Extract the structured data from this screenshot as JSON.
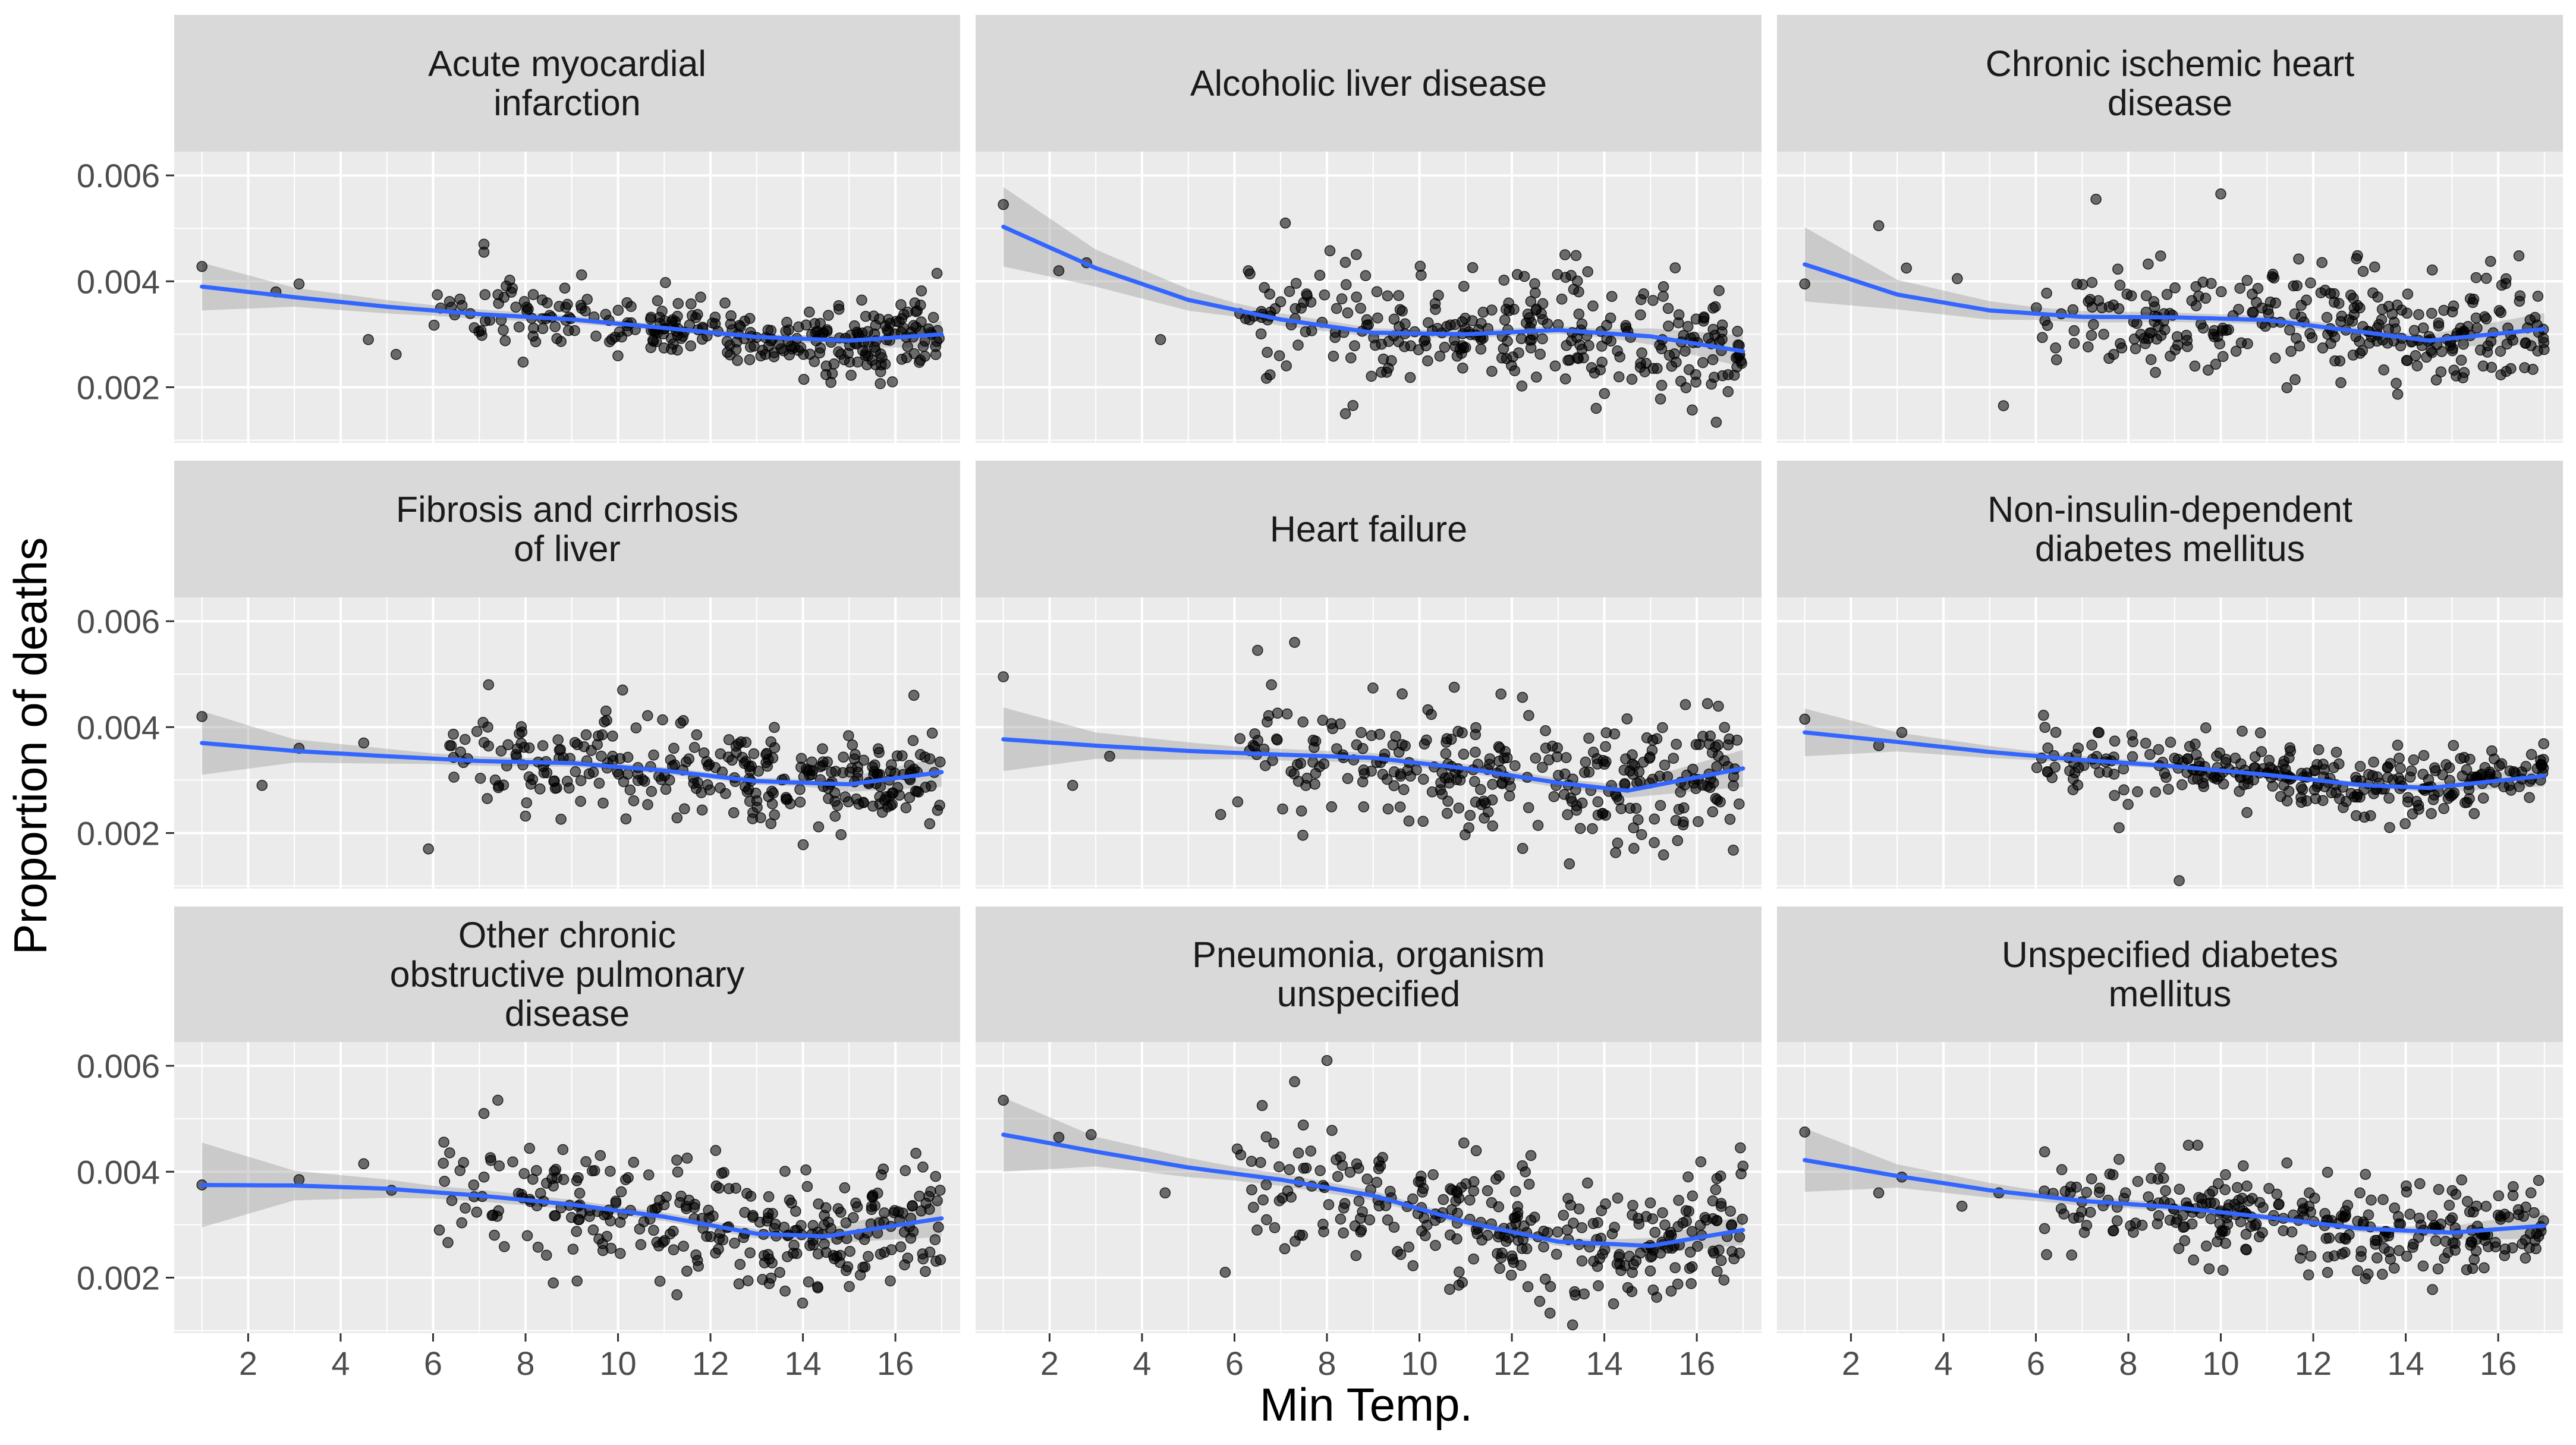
{
  "chart_data": {
    "type": "scatter",
    "layout": "3x3 faceted scatter with smoothed trend line and confidence band",
    "xlabel": "Min Temp.",
    "ylabel": "Proportion of deaths",
    "xlim": [
      0.4,
      17.4
    ],
    "ylim": [
      0.00095,
      0.00645
    ],
    "x_ticks": [
      "2",
      "4",
      "6",
      "8",
      "10",
      "12",
      "14",
      "16"
    ],
    "y_ticks": [
      "0.002",
      "0.004",
      "0.006"
    ],
    "grid": true,
    "colors": {
      "panel_bg": "#ebebeb",
      "strip_bg": "#d9d9d9",
      "grid_major": "#ffffff",
      "points": "#000000",
      "smooth_line": "#3366ff",
      "confidence_band": "#999999"
    },
    "facets": [
      {
        "title_lines": [
          "Acute myocardial",
          "infarction"
        ],
        "smooth": [
          [
            1,
            0.0039
          ],
          [
            3,
            0.0037
          ],
          [
            5,
            0.00352
          ],
          [
            7,
            0.00338
          ],
          [
            9,
            0.00328
          ],
          [
            11,
            0.00312
          ],
          [
            13,
            0.00295
          ],
          [
            15,
            0.00288
          ],
          [
            17,
            0.003
          ]
        ],
        "se": [
          [
            1,
            0.00045
          ],
          [
            3,
            0.00018
          ],
          [
            6,
            0.0001
          ],
          [
            10,
            6e-05
          ],
          [
            14,
            7e-05
          ],
          [
            17,
            0.00025
          ]
        ],
        "cloud": {
          "center_mean": 0.0031,
          "spread": 0.00033
        },
        "outliers": [
          [
            1,
            0.00428
          ],
          [
            2.6,
            0.0038
          ],
          [
            3.1,
            0.00395
          ],
          [
            4.6,
            0.0029
          ],
          [
            5.2,
            0.00262
          ],
          [
            7.1,
            0.0047
          ],
          [
            7.1,
            0.00455
          ],
          [
            16.9,
            0.00415
          ]
        ]
      },
      {
        "title_lines": [
          "Alcoholic liver disease"
        ],
        "smooth": [
          [
            1,
            0.00503
          ],
          [
            3,
            0.00425
          ],
          [
            5,
            0.00365
          ],
          [
            7,
            0.00328
          ],
          [
            9,
            0.00303
          ],
          [
            11,
            0.003
          ],
          [
            13,
            0.00308
          ],
          [
            15,
            0.00296
          ],
          [
            17,
            0.00268
          ]
        ],
        "se": [
          [
            1,
            0.00075
          ],
          [
            3,
            0.00035
          ],
          [
            6,
            0.00013
          ],
          [
            10,
            7e-05
          ],
          [
            14,
            8e-05
          ],
          [
            17,
            0.0003
          ]
        ],
        "cloud": {
          "center_mean": 0.00305,
          "spread": 0.00055
        },
        "outliers": [
          [
            1,
            0.00545
          ],
          [
            2.2,
            0.0042
          ],
          [
            2.8,
            0.00435
          ],
          [
            4.4,
            0.0029
          ],
          [
            6.3,
            0.0042
          ],
          [
            7.1,
            0.0051
          ],
          [
            8.4,
            0.0015
          ]
        ]
      },
      {
        "title_lines": [
          "Chronic ischemic heart",
          "disease"
        ],
        "smooth": [
          [
            1,
            0.00432
          ],
          [
            3,
            0.00375
          ],
          [
            5,
            0.00345
          ],
          [
            7,
            0.00333
          ],
          [
            9,
            0.00332
          ],
          [
            11,
            0.00327
          ],
          [
            13,
            0.00305
          ],
          [
            14.5,
            0.00288
          ],
          [
            17,
            0.0031
          ]
        ],
        "se": [
          [
            1,
            0.0007
          ],
          [
            3,
            0.00028
          ],
          [
            6,
            0.00012
          ],
          [
            10,
            8e-05
          ],
          [
            14,
            8e-05
          ],
          [
            17,
            0.0003
          ]
        ],
        "cloud": {
          "center_mean": 0.00315,
          "spread": 0.00055
        },
        "outliers": [
          [
            1,
            0.00395
          ],
          [
            2.6,
            0.00505
          ],
          [
            3.2,
            0.00425
          ],
          [
            4.3,
            0.00405
          ],
          [
            5.3,
            0.00165
          ],
          [
            7.3,
            0.00555
          ],
          [
            10,
            0.00565
          ]
        ]
      },
      {
        "title_lines": [
          "Fibrosis and cirrhosis",
          "of liver"
        ],
        "smooth": [
          [
            1,
            0.0037
          ],
          [
            3,
            0.00355
          ],
          [
            5,
            0.00345
          ],
          [
            7,
            0.00336
          ],
          [
            9,
            0.00332
          ],
          [
            11,
            0.00318
          ],
          [
            13,
            0.00298
          ],
          [
            15,
            0.00292
          ],
          [
            17,
            0.00315
          ]
        ],
        "se": [
          [
            1,
            0.0006
          ],
          [
            3,
            0.00022
          ],
          [
            6,
            0.0001
          ],
          [
            10,
            6e-05
          ],
          [
            14,
            7e-05
          ],
          [
            17,
            0.00028
          ]
        ],
        "cloud": {
          "center_mean": 0.0031,
          "spread": 0.00045
        },
        "outliers": [
          [
            1,
            0.0042
          ],
          [
            2.3,
            0.0029
          ],
          [
            3.1,
            0.0036
          ],
          [
            4.5,
            0.0037
          ],
          [
            5.9,
            0.0017
          ],
          [
            7.2,
            0.0048
          ],
          [
            10.1,
            0.0047
          ],
          [
            16.4,
            0.0046
          ]
        ]
      },
      {
        "title_lines": [
          "Heart failure"
        ],
        "smooth": [
          [
            1,
            0.00377
          ],
          [
            3,
            0.00365
          ],
          [
            5,
            0.00355
          ],
          [
            7,
            0.00348
          ],
          [
            9,
            0.00342
          ],
          [
            11,
            0.00322
          ],
          [
            13,
            0.00295
          ],
          [
            14.5,
            0.0028
          ],
          [
            17,
            0.00322
          ]
        ],
        "se": [
          [
            1,
            0.0006
          ],
          [
            3,
            0.00025
          ],
          [
            6,
            0.00012
          ],
          [
            10,
            8e-05
          ],
          [
            14,
            9e-05
          ],
          [
            17,
            0.00035
          ]
        ],
        "cloud": {
          "center_mean": 0.0031,
          "spread": 0.00058
        },
        "outliers": [
          [
            1,
            0.00495
          ],
          [
            2.5,
            0.0029
          ],
          [
            3.3,
            0.00345
          ],
          [
            5.7,
            0.00235
          ],
          [
            6.5,
            0.00545
          ],
          [
            7.3,
            0.0056
          ],
          [
            6.8,
            0.0048
          ]
        ]
      },
      {
        "title_lines": [
          "Non-insulin-dependent",
          "diabetes mellitus"
        ],
        "smooth": [
          [
            1,
            0.0039
          ],
          [
            3,
            0.00372
          ],
          [
            5,
            0.00353
          ],
          [
            7,
            0.00338
          ],
          [
            9,
            0.00326
          ],
          [
            11,
            0.0031
          ],
          [
            13,
            0.00291
          ],
          [
            14.5,
            0.00285
          ],
          [
            17,
            0.00308
          ]
        ],
        "se": [
          [
            1,
            0.00045
          ],
          [
            3,
            0.00018
          ],
          [
            6,
            8e-05
          ],
          [
            10,
            5e-05
          ],
          [
            14,
            6e-05
          ],
          [
            17,
            0.0002
          ]
        ],
        "cloud": {
          "center_mean": 0.0031,
          "spread": 0.0003
        },
        "outliers": [
          [
            1,
            0.00415
          ],
          [
            2.6,
            0.00365
          ],
          [
            3.1,
            0.0039
          ],
          [
            9.1,
            0.0011
          ],
          [
            7.8,
            0.0021
          ]
        ]
      },
      {
        "title_lines": [
          "Other chronic",
          "obstructive pulmonary",
          "disease"
        ],
        "smooth": [
          [
            1,
            0.00375
          ],
          [
            3,
            0.00374
          ],
          [
            5,
            0.00368
          ],
          [
            7,
            0.00355
          ],
          [
            9,
            0.00338
          ],
          [
            11,
            0.00315
          ],
          [
            13,
            0.00283
          ],
          [
            14.5,
            0.00278
          ],
          [
            17,
            0.00312
          ]
        ],
        "se": [
          [
            1,
            0.0008
          ],
          [
            3,
            0.00028
          ],
          [
            6,
            0.00012
          ],
          [
            10,
            8e-05
          ],
          [
            14,
            9e-05
          ],
          [
            17,
            0.00035
          ]
        ],
        "cloud": {
          "center_mean": 0.0031,
          "spread": 0.00055
        },
        "outliers": [
          [
            1,
            0.00375
          ],
          [
            3.1,
            0.00385
          ],
          [
            4.5,
            0.00415
          ],
          [
            5.1,
            0.00365
          ],
          [
            7.1,
            0.0051
          ],
          [
            7.4,
            0.00535
          ],
          [
            8.6,
            0.0019
          ]
        ]
      },
      {
        "title_lines": [
          "Pneumonia, organism",
          "unspecified"
        ],
        "smooth": [
          [
            1,
            0.0047
          ],
          [
            3,
            0.00438
          ],
          [
            5,
            0.00408
          ],
          [
            7,
            0.00385
          ],
          [
            9,
            0.00355
          ],
          [
            11,
            0.00305
          ],
          [
            13,
            0.00268
          ],
          [
            15,
            0.0026
          ],
          [
            17,
            0.0029
          ]
        ],
        "se": [
          [
            1,
            0.0007
          ],
          [
            3,
            0.00028
          ],
          [
            6,
            0.00013
          ],
          [
            10,
            8e-05
          ],
          [
            14,
            8e-05
          ],
          [
            17,
            0.00028
          ]
        ],
        "cloud": {
          "center_mean": 0.003,
          "spread": 0.0006
        },
        "outliers": [
          [
            1,
            0.00535
          ],
          [
            2.2,
            0.00465
          ],
          [
            2.9,
            0.0047
          ],
          [
            4.5,
            0.0036
          ],
          [
            5.8,
            0.0021
          ],
          [
            6.6,
            0.00525
          ],
          [
            8,
            0.0061
          ],
          [
            7.3,
            0.0057
          ]
        ]
      },
      {
        "title_lines": [
          "Unspecified diabetes",
          "mellitus"
        ],
        "smooth": [
          [
            1,
            0.00422
          ],
          [
            3,
            0.00392
          ],
          [
            5,
            0.00365
          ],
          [
            7,
            0.00345
          ],
          [
            9,
            0.00333
          ],
          [
            11,
            0.00314
          ],
          [
            13,
            0.00293
          ],
          [
            15,
            0.00285
          ],
          [
            17,
            0.00298
          ]
        ],
        "se": [
          [
            1,
            0.0006
          ],
          [
            3,
            0.00022
          ],
          [
            6,
            0.0001
          ],
          [
            10,
            6e-05
          ],
          [
            14,
            7e-05
          ],
          [
            17,
            0.00025
          ]
        ],
        "cloud": {
          "center_mean": 0.0031,
          "spread": 0.00042
        },
        "outliers": [
          [
            1,
            0.00475
          ],
          [
            2.6,
            0.0036
          ],
          [
            3.1,
            0.0039
          ],
          [
            4.4,
            0.00335
          ],
          [
            5.2,
            0.0036
          ],
          [
            9.3,
            0.0045
          ],
          [
            9.5,
            0.0045
          ]
        ]
      }
    ]
  }
}
